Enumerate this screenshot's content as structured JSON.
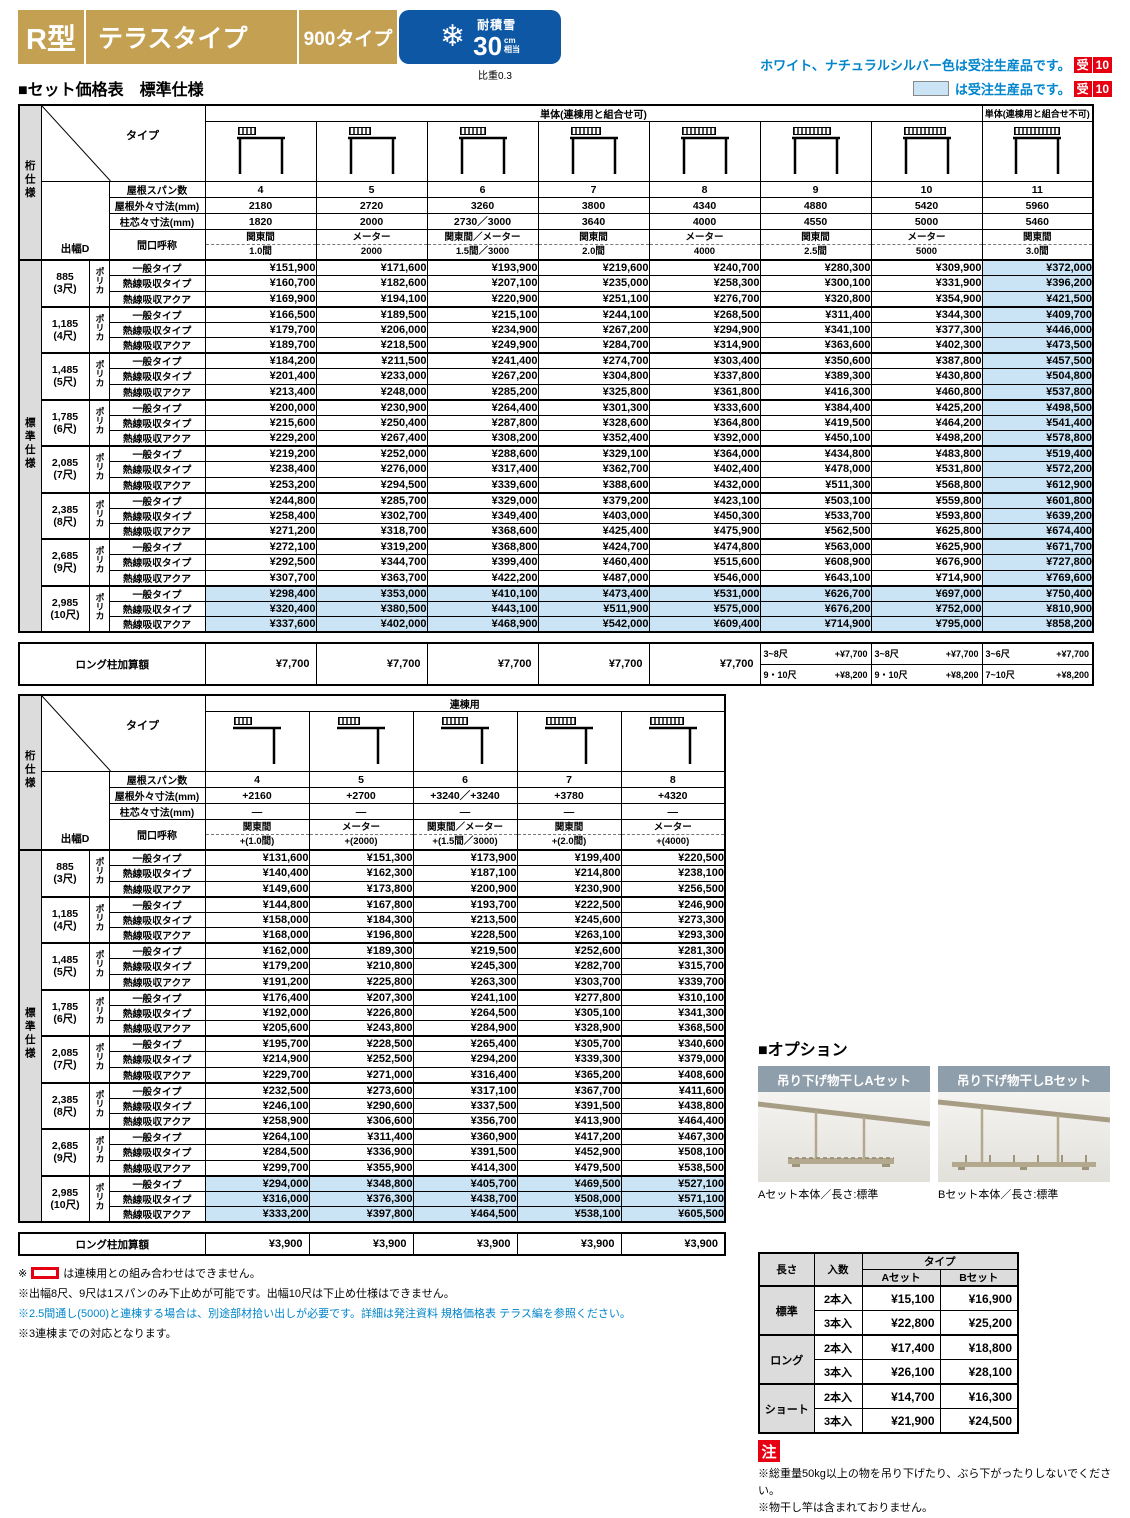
{
  "colors": {
    "gold": "#C4A052",
    "badge_blue": "#0D57A5",
    "note_blue": "#0085CC",
    "accent_red": "#E60012",
    "made_to_order_blue": "#CBE4F5",
    "header_gray": "#DCDCDC",
    "option_label_gray": "#8E9EAB"
  },
  "header": {
    "model": "R型",
    "product": "テラスタイプ",
    "size_type": "900タイプ",
    "snow_badge": {
      "title": "耐積雪",
      "value": "30",
      "unit_top": "cm",
      "unit_bottom": "相当"
    },
    "density_note": "比重0.3",
    "mto_notes": [
      {
        "text": "ホワイト、ナチュラルシルバー色は受注生産品です。",
        "badge": "受",
        "badge_num": "10",
        "swatch": false
      },
      {
        "text": "は受注生産品です。",
        "badge": "受",
        "badge_num": "10",
        "swatch": true
      }
    ]
  },
  "section_title": "■セット価格表　標準仕様",
  "shared": {
    "side_label_top": "桁仕様",
    "side_label_body": "標準仕様",
    "corner_type": "タイプ",
    "corner_depth": "出幅D",
    "row_labels": [
      "屋根スパン数",
      "屋根外々寸法(mm)",
      "柱芯々寸法(mm)",
      "間口呼称"
    ],
    "material": "ポリカ",
    "long_pillar_label": "ロング柱加算額",
    "row_types": [
      "一般タイプ",
      "熱線吸収タイプ",
      "熱線吸収アクア"
    ]
  },
  "table_single": {
    "group_header_main": "単体(連棟用と組合せ可)",
    "group_header_last": "単体(連棟用と組合せ不可)",
    "columns": [
      {
        "span": "4",
        "roof": "2180",
        "pillar": "1820",
        "name1": "関東間",
        "name2": "1.0間"
      },
      {
        "span": "5",
        "roof": "2720",
        "pillar": "2000",
        "name1": "メーター",
        "name2": "2000"
      },
      {
        "span": "6",
        "roof": "3260",
        "pillar": "2730／3000",
        "name1": "関東間／メーター",
        "name2": "1.5間／3000"
      },
      {
        "span": "7",
        "roof": "3800",
        "pillar": "3640",
        "name1": "関東間",
        "name2": "2.0間"
      },
      {
        "span": "8",
        "roof": "4340",
        "pillar": "4000",
        "name1": "メーター",
        "name2": "4000"
      },
      {
        "span": "9",
        "roof": "4880",
        "pillar": "4550",
        "name1": "関東間",
        "name2": "2.5間"
      },
      {
        "span": "10",
        "roof": "5420",
        "pillar": "5000",
        "name1": "メーター",
        "name2": "5000"
      },
      {
        "span": "11",
        "roof": "5960",
        "pillar": "5460",
        "name1": "関東間",
        "name2": "3.0間"
      }
    ],
    "groups": [
      {
        "depth": "885",
        "shaku": "(3尺)",
        "highlight": false,
        "prices": [
          [
            "¥151,900",
            "¥171,600",
            "¥193,900",
            "¥219,600",
            "¥240,700",
            "¥280,300",
            "¥309,900",
            "¥372,000"
          ],
          [
            "¥160,700",
            "¥182,600",
            "¥207,100",
            "¥235,000",
            "¥258,300",
            "¥300,100",
            "¥331,900",
            "¥396,200"
          ],
          [
            "¥169,900",
            "¥194,100",
            "¥220,900",
            "¥251,100",
            "¥276,700",
            "¥320,800",
            "¥354,900",
            "¥421,500"
          ]
        ]
      },
      {
        "depth": "1,185",
        "shaku": "(4尺)",
        "highlight": false,
        "prices": [
          [
            "¥166,500",
            "¥189,500",
            "¥215,100",
            "¥244,100",
            "¥268,500",
            "¥311,400",
            "¥344,300",
            "¥409,700"
          ],
          [
            "¥179,700",
            "¥206,000",
            "¥234,900",
            "¥267,200",
            "¥294,900",
            "¥341,100",
            "¥377,300",
            "¥446,000"
          ],
          [
            "¥189,700",
            "¥218,500",
            "¥249,900",
            "¥284,700",
            "¥314,900",
            "¥363,600",
            "¥402,300",
            "¥473,500"
          ]
        ]
      },
      {
        "depth": "1,485",
        "shaku": "(5尺)",
        "highlight": false,
        "prices": [
          [
            "¥184,200",
            "¥211,500",
            "¥241,400",
            "¥274,700",
            "¥303,400",
            "¥350,600",
            "¥387,800",
            "¥457,500"
          ],
          [
            "¥201,400",
            "¥233,000",
            "¥267,200",
            "¥304,800",
            "¥337,800",
            "¥389,300",
            "¥430,800",
            "¥504,800"
          ],
          [
            "¥213,400",
            "¥248,000",
            "¥285,200",
            "¥325,800",
            "¥361,800",
            "¥416,300",
            "¥460,800",
            "¥537,800"
          ]
        ]
      },
      {
        "depth": "1,785",
        "shaku": "(6尺)",
        "highlight": false,
        "prices": [
          [
            "¥200,000",
            "¥230,900",
            "¥264,400",
            "¥301,300",
            "¥333,600",
            "¥384,400",
            "¥425,200",
            "¥498,500"
          ],
          [
            "¥215,600",
            "¥250,400",
            "¥287,800",
            "¥328,600",
            "¥364,800",
            "¥419,500",
            "¥464,200",
            "¥541,400"
          ],
          [
            "¥229,200",
            "¥267,400",
            "¥308,200",
            "¥352,400",
            "¥392,000",
            "¥450,100",
            "¥498,200",
            "¥578,800"
          ]
        ]
      },
      {
        "depth": "2,085",
        "shaku": "(7尺)",
        "highlight": false,
        "prices": [
          [
            "¥219,200",
            "¥252,000",
            "¥288,600",
            "¥329,100",
            "¥364,000",
            "¥434,800",
            "¥483,800",
            "¥519,400"
          ],
          [
            "¥238,400",
            "¥276,000",
            "¥317,400",
            "¥362,700",
            "¥402,400",
            "¥478,000",
            "¥531,800",
            "¥572,200"
          ],
          [
            "¥253,200",
            "¥294,500",
            "¥339,600",
            "¥388,600",
            "¥432,000",
            "¥511,300",
            "¥568,800",
            "¥612,900"
          ]
        ]
      },
      {
        "depth": "2,385",
        "shaku": "(8尺)",
        "highlight": false,
        "prices": [
          [
            "¥244,800",
            "¥285,700",
            "¥329,000",
            "¥379,200",
            "¥423,100",
            "¥503,100",
            "¥559,800",
            "¥601,800"
          ],
          [
            "¥258,400",
            "¥302,700",
            "¥349,400",
            "¥403,000",
            "¥450,300",
            "¥533,700",
            "¥593,800",
            "¥639,200"
          ],
          [
            "¥271,200",
            "¥318,700",
            "¥368,600",
            "¥425,400",
            "¥475,900",
            "¥562,500",
            "¥625,800",
            "¥674,400"
          ]
        ]
      },
      {
        "depth": "2,685",
        "shaku": "(9尺)",
        "highlight": false,
        "prices": [
          [
            "¥272,100",
            "¥319,200",
            "¥368,800",
            "¥424,700",
            "¥474,800",
            "¥563,000",
            "¥625,900",
            "¥671,700"
          ],
          [
            "¥292,500",
            "¥344,700",
            "¥399,400",
            "¥460,400",
            "¥515,600",
            "¥608,900",
            "¥676,900",
            "¥727,800"
          ],
          [
            "¥307,700",
            "¥363,700",
            "¥422,200",
            "¥487,000",
            "¥546,000",
            "¥643,100",
            "¥714,900",
            "¥769,600"
          ]
        ]
      },
      {
        "depth": "2,985",
        "shaku": "(10尺)",
        "highlight": true,
        "prices": [
          [
            "¥298,400",
            "¥353,000",
            "¥410,100",
            "¥473,400",
            "¥531,000",
            "¥626,700",
            "¥697,000",
            "¥750,400"
          ],
          [
            "¥320,400",
            "¥380,500",
            "¥443,100",
            "¥511,900",
            "¥575,000",
            "¥676,200",
            "¥752,000",
            "¥810,900"
          ],
          [
            "¥337,600",
            "¥402,000",
            "¥468,900",
            "¥542,000",
            "¥609,400",
            "¥714,900",
            "¥795,000",
            "¥858,200"
          ]
        ]
      }
    ],
    "long_pillar_values": [
      "¥7,700",
      "¥7,700",
      "¥7,700",
      "¥7,700",
      "¥7,700"
    ],
    "long_pillar_splits": [
      {
        "t_range": "3~8尺",
        "t_add": "+¥7,700",
        "b_range": "9・10尺",
        "b_add": "+¥8,200"
      },
      {
        "t_range": "3~8尺",
        "t_add": "+¥7,700",
        "b_range": "9・10尺",
        "b_add": "+¥8,200"
      },
      {
        "t_range": "3~6尺",
        "t_add": "+¥7,700",
        "b_range": "7~10尺",
        "b_add": "+¥8,200"
      }
    ]
  },
  "table_renketsu": {
    "group_header_main": "連棟用",
    "columns": [
      {
        "span": "4",
        "roof": "+2160",
        "pillar": "—",
        "name1": "関東間",
        "name2": "+(1.0間)"
      },
      {
        "span": "5",
        "roof": "+2700",
        "pillar": "—",
        "name1": "メーター",
        "name2": "+(2000)"
      },
      {
        "span": "6",
        "roof": "+3240／+3240",
        "pillar": "—",
        "name1": "関東間／メーター",
        "name2": "+(1.5間／3000)"
      },
      {
        "span": "7",
        "roof": "+3780",
        "pillar": "—",
        "name1": "関東間",
        "name2": "+(2.0間)"
      },
      {
        "span": "8",
        "roof": "+4320",
        "pillar": "—",
        "name1": "メーター",
        "name2": "+(4000)"
      }
    ],
    "groups": [
      {
        "depth": "885",
        "shaku": "(3尺)",
        "highlight": false,
        "prices": [
          [
            "¥131,600",
            "¥151,300",
            "¥173,900",
            "¥199,400",
            "¥220,500"
          ],
          [
            "¥140,400",
            "¥162,300",
            "¥187,100",
            "¥214,800",
            "¥238,100"
          ],
          [
            "¥149,600",
            "¥173,800",
            "¥200,900",
            "¥230,900",
            "¥256,500"
          ]
        ]
      },
      {
        "depth": "1,185",
        "shaku": "(4尺)",
        "highlight": false,
        "prices": [
          [
            "¥144,800",
            "¥167,800",
            "¥193,700",
            "¥222,500",
            "¥246,900"
          ],
          [
            "¥158,000",
            "¥184,300",
            "¥213,500",
            "¥245,600",
            "¥273,300"
          ],
          [
            "¥168,000",
            "¥196,800",
            "¥228,500",
            "¥263,100",
            "¥293,300"
          ]
        ]
      },
      {
        "depth": "1,485",
        "shaku": "(5尺)",
        "highlight": false,
        "prices": [
          [
            "¥162,000",
            "¥189,300",
            "¥219,500",
            "¥252,600",
            "¥281,300"
          ],
          [
            "¥179,200",
            "¥210,800",
            "¥245,300",
            "¥282,700",
            "¥315,700"
          ],
          [
            "¥191,200",
            "¥225,800",
            "¥263,300",
            "¥303,700",
            "¥339,700"
          ]
        ]
      },
      {
        "depth": "1,785",
        "shaku": "(6尺)",
        "highlight": false,
        "prices": [
          [
            "¥176,400",
            "¥207,300",
            "¥241,100",
            "¥277,800",
            "¥310,100"
          ],
          [
            "¥192,000",
            "¥226,800",
            "¥264,500",
            "¥305,100",
            "¥341,300"
          ],
          [
            "¥205,600",
            "¥243,800",
            "¥284,900",
            "¥328,900",
            "¥368,500"
          ]
        ]
      },
      {
        "depth": "2,085",
        "shaku": "(7尺)",
        "highlight": false,
        "prices": [
          [
            "¥195,700",
            "¥228,500",
            "¥265,400",
            "¥305,700",
            "¥340,600"
          ],
          [
            "¥214,900",
            "¥252,500",
            "¥294,200",
            "¥339,300",
            "¥379,000"
          ],
          [
            "¥229,700",
            "¥271,000",
            "¥316,400",
            "¥365,200",
            "¥408,600"
          ]
        ]
      },
      {
        "depth": "2,385",
        "shaku": "(8尺)",
        "highlight": false,
        "prices": [
          [
            "¥232,500",
            "¥273,600",
            "¥317,100",
            "¥367,700",
            "¥411,600"
          ],
          [
            "¥246,100",
            "¥290,600",
            "¥337,500",
            "¥391,500",
            "¥438,800"
          ],
          [
            "¥258,900",
            "¥306,600",
            "¥356,700",
            "¥413,900",
            "¥464,400"
          ]
        ]
      },
      {
        "depth": "2,685",
        "shaku": "(9尺)",
        "highlight": false,
        "prices": [
          [
            "¥264,100",
            "¥311,400",
            "¥360,900",
            "¥417,200",
            "¥467,300"
          ],
          [
            "¥284,500",
            "¥336,900",
            "¥391,500",
            "¥452,900",
            "¥508,100"
          ],
          [
            "¥299,700",
            "¥355,900",
            "¥414,300",
            "¥479,500",
            "¥538,500"
          ]
        ]
      },
      {
        "depth": "2,985",
        "shaku": "(10尺)",
        "highlight": true,
        "prices": [
          [
            "¥294,000",
            "¥348,800",
            "¥405,700",
            "¥469,500",
            "¥527,100"
          ],
          [
            "¥316,000",
            "¥376,300",
            "¥438,700",
            "¥508,000",
            "¥571,100"
          ],
          [
            "¥333,200",
            "¥397,800",
            "¥464,500",
            "¥538,100",
            "¥605,500"
          ]
        ]
      }
    ],
    "long_pillar_values": [
      "¥3,900",
      "¥3,900",
      "¥3,900",
      "¥3,900",
      "¥3,900"
    ]
  },
  "footnotes": [
    {
      "type": "red-swatch",
      "prefix": "※",
      "text": "は連棟用との組み合わせはできません。"
    },
    {
      "type": "plain",
      "text": "※出幅8尺、9尺は1スパンのみ下止めが可能です。出幅10尺は下止め仕様はできません。"
    },
    {
      "type": "blue",
      "text": "※2.5間通し(5000)と連棟する場合は、別途部材拾い出しが必要です。詳細は発注資料 規格価格表 テラス編を参照ください。"
    },
    {
      "type": "plain",
      "text": "※3連棟までの対応となります。"
    }
  ],
  "options": {
    "title": "■オプション",
    "items": [
      {
        "label": "吊り下げ物干しAセット",
        "caption": "Aセット本体／長さ:標準"
      },
      {
        "label": "吊り下げ物干しBセット",
        "caption": "Bセット本体／長さ:標準"
      }
    ],
    "price_table": {
      "h_length": "長さ",
      "h_count": "入数",
      "h_type": "タイプ",
      "h_a": "Aセット",
      "h_b": "Bセット",
      "rows": [
        {
          "length": "標準",
          "sub": [
            {
              "count": "2本入",
              "a": "¥15,100",
              "b": "¥16,900"
            },
            {
              "count": "3本入",
              "a": "¥22,800",
              "b": "¥25,200"
            }
          ]
        },
        {
          "length": "ロング",
          "sub": [
            {
              "count": "2本入",
              "a": "¥17,400",
              "b": "¥18,800"
            },
            {
              "count": "3本入",
              "a": "¥26,100",
              "b": "¥28,100"
            }
          ]
        },
        {
          "length": "ショート",
          "sub": [
            {
              "count": "2本入",
              "a": "¥14,700",
              "b": "¥16,300"
            },
            {
              "count": "3本入",
              "a": "¥21,900",
              "b": "¥24,500"
            }
          ]
        }
      ]
    },
    "note_badge": "注",
    "notes": [
      "※総重量50kg以上の物を吊り下げたり、ぶら下がったりしないでください。",
      "※物干し竿は含まれておりません。"
    ]
  }
}
